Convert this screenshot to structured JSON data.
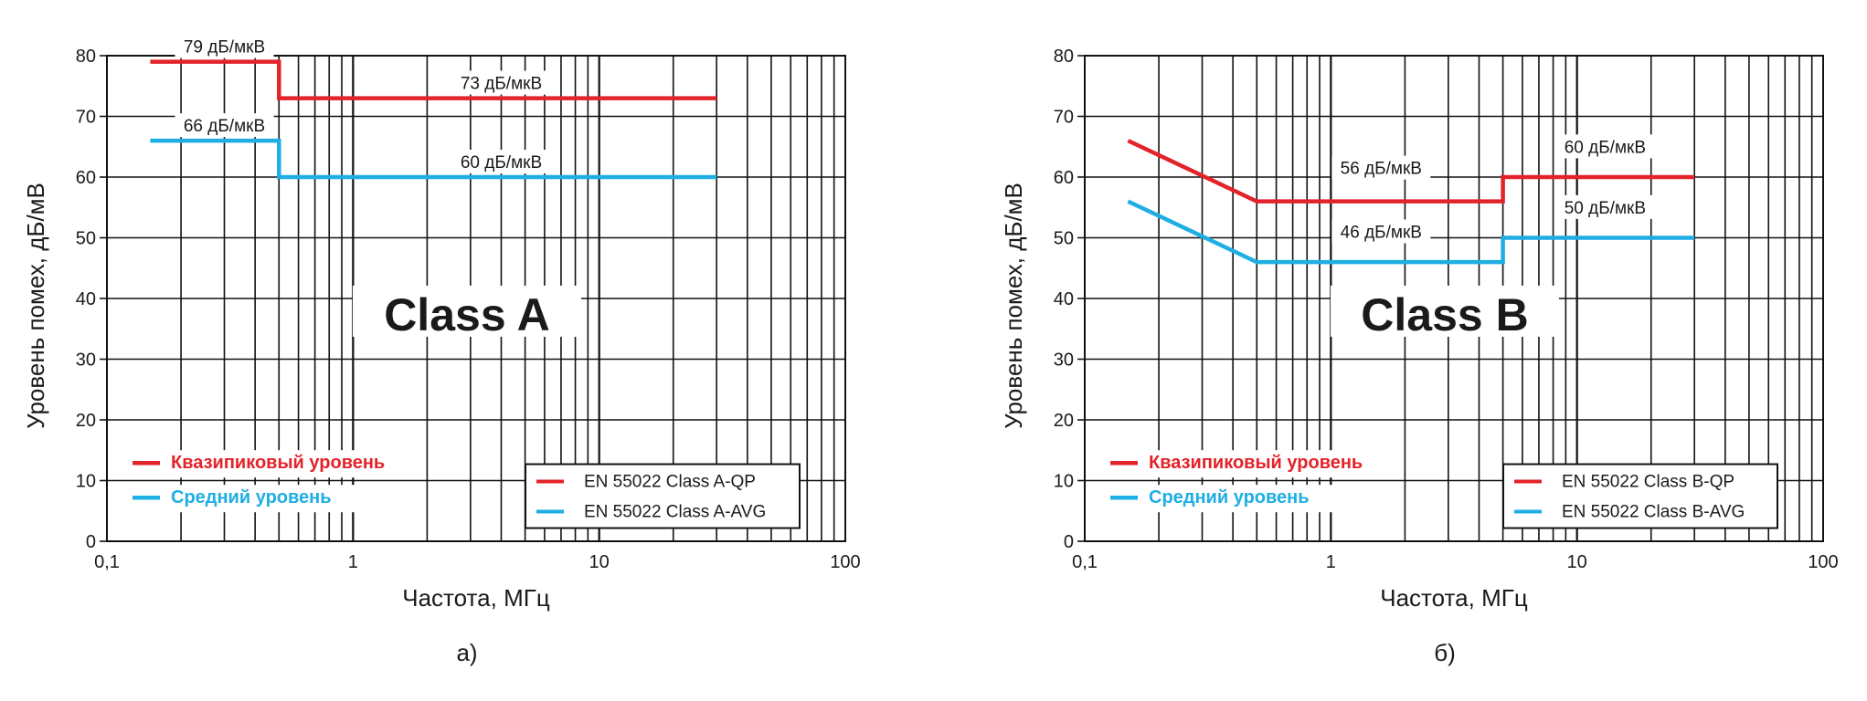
{
  "colors": {
    "qp": "#e3232a",
    "avg": "#1eaee4",
    "grid": "#111111"
  },
  "chart_data": [
    {
      "type": "line",
      "panel_caption": "а)",
      "title": "Class A",
      "xlabel": "Частота, МГц",
      "ylabel": "Уровень помех, дБ/мВ",
      "xscale": "log",
      "xlim": [
        0.1,
        100
      ],
      "ylim": [
        0,
        80
      ],
      "xticks": [
        {
          "v": 0.1,
          "label": "0,1"
        },
        {
          "v": 1,
          "label": "1"
        },
        {
          "v": 10,
          "label": "10"
        },
        {
          "v": 100,
          "label": "100"
        }
      ],
      "yticks": [
        "0",
        "10",
        "20",
        "30",
        "40",
        "50",
        "60",
        "70",
        "80"
      ],
      "grid": true,
      "series": [
        {
          "name": "EN 55022 Class A-QP",
          "color": "#e3232a",
          "points": [
            [
              0.15,
              79
            ],
            [
              0.5,
              79
            ],
            [
              0.5,
              73
            ],
            [
              30,
              73
            ]
          ]
        },
        {
          "name": "EN 55022 Class A-AVG",
          "color": "#1eaee4",
          "points": [
            [
              0.15,
              66
            ],
            [
              0.5,
              66
            ],
            [
              0.5,
              60
            ],
            [
              30,
              60
            ]
          ]
        }
      ],
      "annotations": [
        {
          "text": "79 дБ/мкВ",
          "x": 0.3,
          "y": 79
        },
        {
          "text": "73 дБ/мкВ",
          "x": 4.0,
          "y": 73
        },
        {
          "text": "66 дБ/мкВ",
          "x": 0.3,
          "y": 66
        },
        {
          "text": "60 дБ/мкВ",
          "x": 4.0,
          "y": 60
        }
      ],
      "legend_left": [
        {
          "label": "Квазипиковый уровень",
          "color": "#e3232a"
        },
        {
          "label": "Средний уровень",
          "color": "#1eaee4"
        }
      ],
      "legend_right": [
        {
          "label": "EN 55022 Class A-QP",
          "color": "#e3232a"
        },
        {
          "label": "EN 55022 Class A-AVG",
          "color": "#1eaee4"
        }
      ]
    },
    {
      "type": "line",
      "panel_caption": "б)",
      "title": "Class B",
      "xlabel": "Частота, МГц",
      "ylabel": "Уровень помех, дБ/мВ",
      "xscale": "log",
      "xlim": [
        0.1,
        100
      ],
      "ylim": [
        0,
        80
      ],
      "xticks": [
        {
          "v": 0.1,
          "label": "0,1"
        },
        {
          "v": 1,
          "label": "1"
        },
        {
          "v": 10,
          "label": "10"
        },
        {
          "v": 100,
          "label": "100"
        }
      ],
      "yticks": [
        "0",
        "10",
        "20",
        "30",
        "40",
        "50",
        "60",
        "70",
        "80"
      ],
      "grid": true,
      "series": [
        {
          "name": "EN 55022 Class B-QP",
          "color": "#e3232a",
          "points": [
            [
              0.15,
              66
            ],
            [
              0.5,
              56
            ],
            [
              5,
              56
            ],
            [
              5,
              60
            ],
            [
              30,
              60
            ]
          ]
        },
        {
          "name": "EN 55022 Class B-AVG",
          "color": "#1eaee4",
          "points": [
            [
              0.15,
              56
            ],
            [
              0.5,
              46
            ],
            [
              5,
              46
            ],
            [
              5,
              50
            ],
            [
              30,
              50
            ]
          ]
        }
      ],
      "annotations": [
        {
          "text": "56 дБ/мкВ",
          "x": 1.6,
          "y": 59
        },
        {
          "text": "60 дБ/мкВ",
          "x": 13,
          "y": 62.5
        },
        {
          "text": "46 дБ/мкВ",
          "x": 1.6,
          "y": 48.5
        },
        {
          "text": "50 дБ/мкВ",
          "x": 13,
          "y": 52.5
        }
      ],
      "legend_left": [
        {
          "label": "Квазипиковый уровень",
          "color": "#e3232a"
        },
        {
          "label": "Средний уровень",
          "color": "#1eaee4"
        }
      ],
      "legend_right": [
        {
          "label": "EN 55022 Class B-QP",
          "color": "#e3232a"
        },
        {
          "label": "EN 55022 Class B-AVG",
          "color": "#1eaee4"
        }
      ]
    }
  ]
}
